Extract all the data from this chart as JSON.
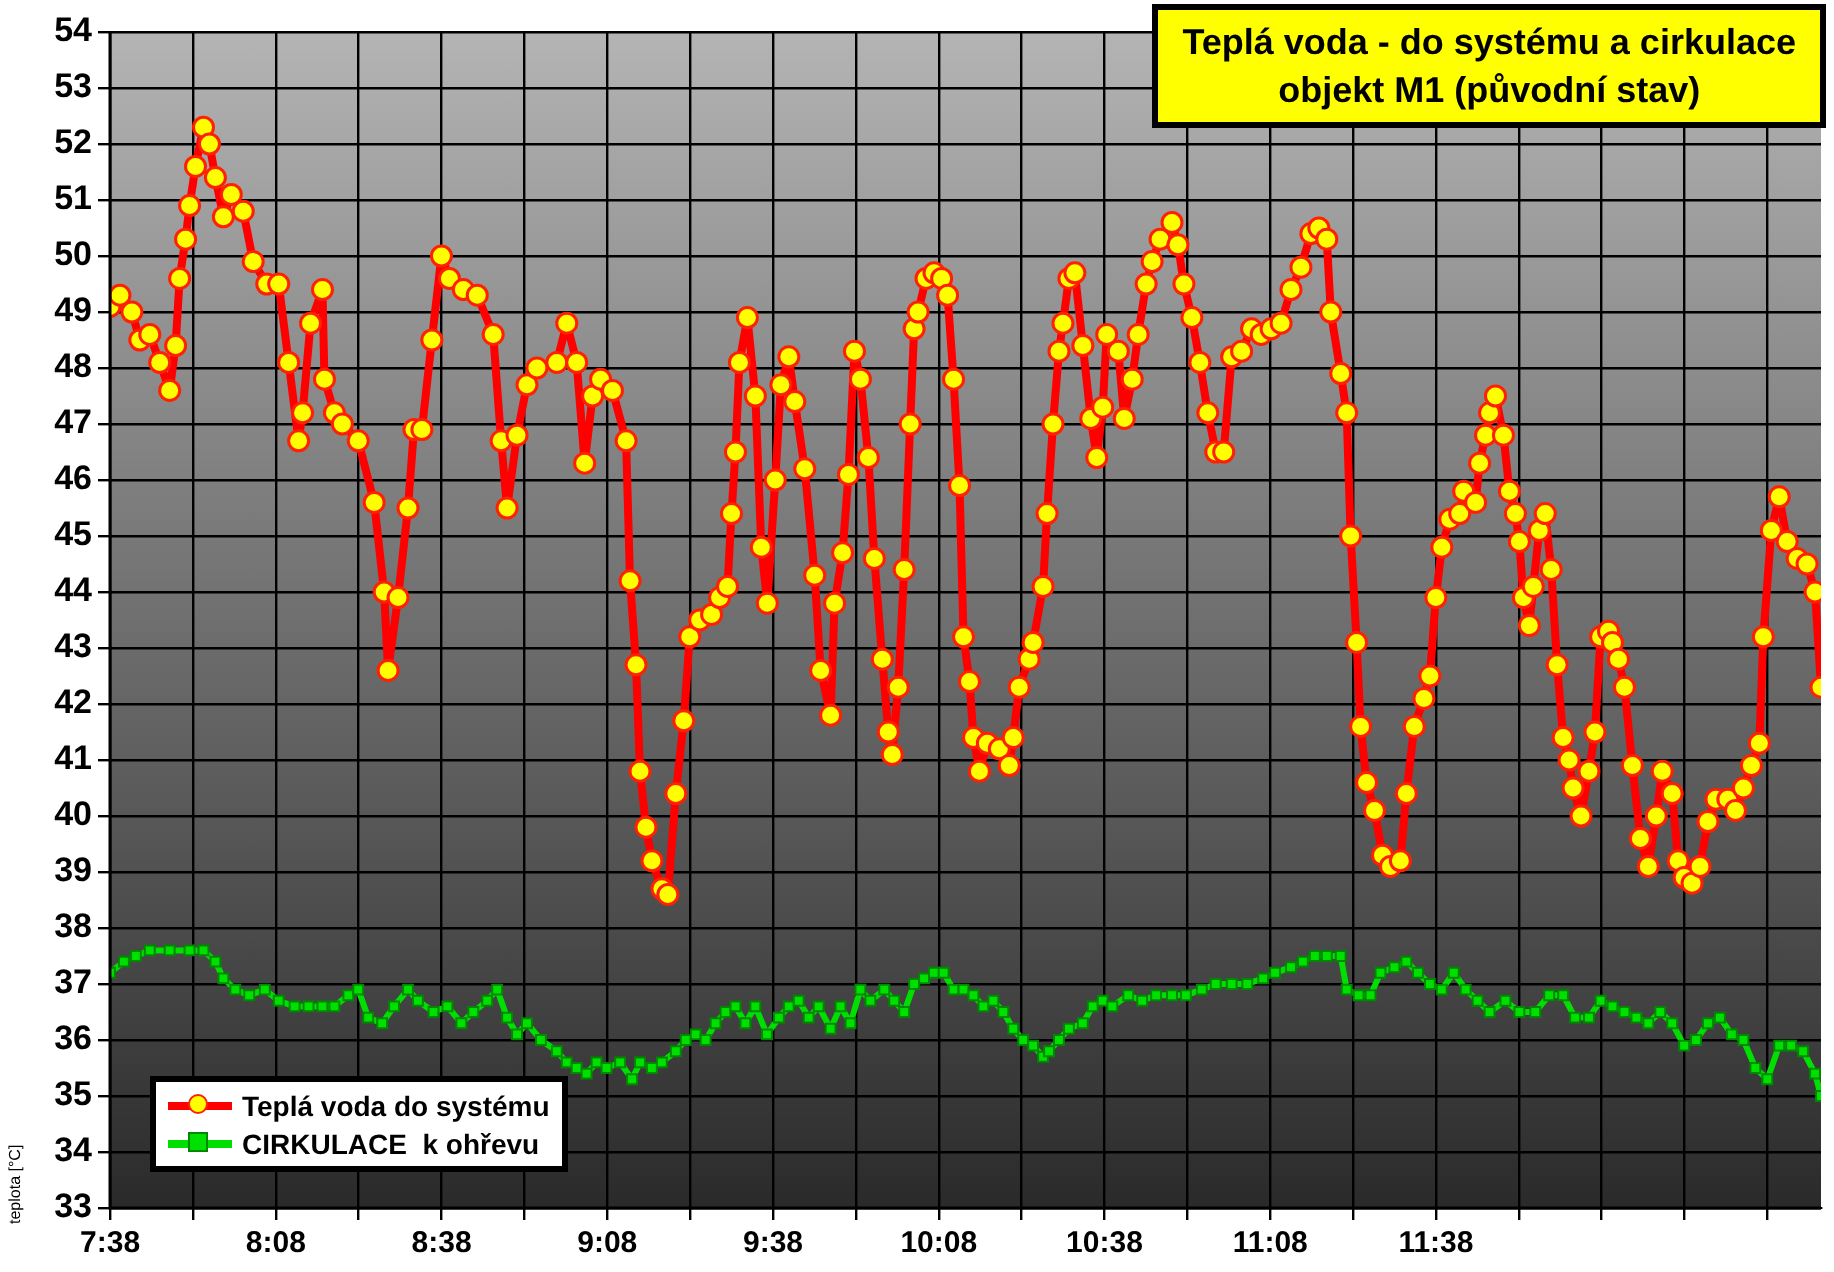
{
  "chart_data": {
    "type": "line",
    "title": "Teplá voda - do systému a cirkulace",
    "subtitle": "objekt M1 (původní stav)",
    "ylabel": "teplota [°C]",
    "xlim": [
      7.633,
      12.795
    ],
    "xticks": [
      {
        "value": 7.6333,
        "label": "7:38"
      },
      {
        "value": 7.8833,
        "label": null
      },
      {
        "value": 8.1333,
        "label": "8:08"
      },
      {
        "value": 8.3833,
        "label": null
      },
      {
        "value": 8.6333,
        "label": "8:38"
      },
      {
        "value": 8.8833,
        "label": null
      },
      {
        "value": 9.1333,
        "label": "9:08"
      },
      {
        "value": 9.3833,
        "label": null
      },
      {
        "value": 9.6333,
        "label": "9:38"
      },
      {
        "value": 9.8833,
        "label": null
      },
      {
        "value": 10.1333,
        "label": "10:08"
      },
      {
        "value": 10.3833,
        "label": null
      },
      {
        "value": 10.6333,
        "label": "10:38"
      },
      {
        "value": 10.8833,
        "label": null
      },
      {
        "value": 11.1333,
        "label": "11:08"
      },
      {
        "value": 11.3833,
        "label": null
      },
      {
        "value": 11.6333,
        "label": "11:38"
      },
      {
        "value": 11.8833,
        "label": null
      },
      {
        "value": 12.1333,
        "label": null
      },
      {
        "value": 12.3833,
        "label": null
      },
      {
        "value": 12.6333,
        "label": null
      }
    ],
    "ylim": [
      33,
      54
    ],
    "yticks": [
      33,
      34,
      35,
      36,
      37,
      38,
      39,
      40,
      41,
      42,
      43,
      44,
      45,
      46,
      47,
      48,
      49,
      50,
      51,
      52,
      53,
      54
    ],
    "grid": true,
    "legend": "bottom left",
    "series": [
      {
        "name": "Teplá voda do systému",
        "color": "#ff0000",
        "marker": "circle",
        "x": [
          7.633,
          7.663,
          7.699,
          7.723,
          7.753,
          7.783,
          7.813,
          7.831,
          7.843,
          7.861,
          7.873,
          7.891,
          7.915,
          7.933,
          7.951,
          7.975,
          7.999,
          8.035,
          8.065,
          8.106,
          8.142,
          8.172,
          8.202,
          8.214,
          8.238,
          8.274,
          8.28,
          8.31,
          8.334,
          8.382,
          8.43,
          8.46,
          8.472,
          8.502,
          8.532,
          8.55,
          8.574,
          8.604,
          8.633,
          8.657,
          8.699,
          8.741,
          8.789,
          8.813,
          8.831,
          8.861,
          8.891,
          8.921,
          8.981,
          9.011,
          9.041,
          9.065,
          9.089,
          9.113,
          9.149,
          9.19,
          9.202,
          9.22,
          9.232,
          9.25,
          9.268,
          9.298,
          9.316,
          9.34,
          9.364,
          9.382,
          9.412,
          9.448,
          9.472,
          9.496,
          9.508,
          9.52,
          9.532,
          9.556,
          9.58,
          9.598,
          9.616,
          9.64,
          9.657,
          9.681,
          9.699,
          9.729,
          9.759,
          9.777,
          9.807,
          9.819,
          9.843,
          9.861,
          9.879,
          9.897,
          9.921,
          9.939,
          9.963,
          9.981,
          9.993,
          10.011,
          10.029,
          10.047,
          10.059,
          10.071,
          10.095,
          10.119,
          10.142,
          10.16,
          10.178,
          10.196,
          10.208,
          10.226,
          10.238,
          10.256,
          10.28,
          10.316,
          10.346,
          10.358,
          10.376,
          10.406,
          10.418,
          10.448,
          10.46,
          10.478,
          10.496,
          10.508,
          10.526,
          10.544,
          10.568,
          10.592,
          10.61,
          10.628,
          10.64,
          10.675,
          10.693,
          10.717,
          10.735,
          10.759,
          10.777,
          10.801,
          10.837,
          10.855,
          10.873,
          10.897,
          10.921,
          10.945,
          10.969,
          10.993,
          11.017,
          11.047,
          11.077,
          11.106,
          11.136,
          11.166,
          11.196,
          11.226,
          11.256,
          11.28,
          11.304,
          11.316,
          11.346,
          11.364,
          11.376,
          11.394,
          11.406,
          11.424,
          11.448,
          11.472,
          11.496,
          11.526,
          11.544,
          11.568,
          11.597,
          11.615,
          11.633,
          11.651,
          11.675,
          11.705,
          11.717,
          11.753,
          11.765,
          11.783,
          11.795,
          11.813,
          11.837,
          11.855,
          11.873,
          11.885,
          11.897,
          11.915,
          11.927,
          11.945,
          11.963,
          11.981,
          11.999,
          12.017,
          12.035,
          12.047,
          12.071,
          12.095,
          12.113,
          12.13,
          12.154,
          12.166,
          12.184,
          12.202,
          12.226,
          12.25,
          12.274,
          12.298,
          12.316,
          12.346,
          12.364,
          12.382,
          12.406,
          12.43,
          12.454,
          12.478,
          12.514,
          12.537,
          12.561,
          12.585,
          12.609,
          12.621,
          12.645,
          12.669,
          12.693,
          12.723,
          12.753,
          12.777,
          12.795
        ],
        "values": [
          49.1,
          49.3,
          49.0,
          48.5,
          48.6,
          48.1,
          47.6,
          48.4,
          49.6,
          50.3,
          50.9,
          51.6,
          52.3,
          52.0,
          51.4,
          50.7,
          51.1,
          50.8,
          49.9,
          49.5,
          49.5,
          48.1,
          46.7,
          47.2,
          48.8,
          49.4,
          47.8,
          47.2,
          47.0,
          46.7,
          45.6,
          44.0,
          42.6,
          43.9,
          45.5,
          46.9,
          46.9,
          48.5,
          50.0,
          49.6,
          49.4,
          49.3,
          48.6,
          46.7,
          45.5,
          46.8,
          47.7,
          48.0,
          48.1,
          48.8,
          48.1,
          46.3,
          47.5,
          47.8,
          47.6,
          46.7,
          44.2,
          42.7,
          40.8,
          39.8,
          39.2,
          38.7,
          38.6,
          40.4,
          41.7,
          43.2,
          43.5,
          43.6,
          43.9,
          44.1,
          45.4,
          46.5,
          48.1,
          48.9,
          47.5,
          44.8,
          43.8,
          46.0,
          47.7,
          48.2,
          47.4,
          46.2,
          44.3,
          42.6,
          41.8,
          43.8,
          44.7,
          46.1,
          48.3,
          47.8,
          46.4,
          44.6,
          42.8,
          41.5,
          41.1,
          42.3,
          44.4,
          47.0,
          48.7,
          49.0,
          49.6,
          49.7,
          49.6,
          49.3,
          47.8,
          45.9,
          43.2,
          42.4,
          41.4,
          40.8,
          41.3,
          41.2,
          40.9,
          41.4,
          42.3,
          42.8,
          43.1,
          44.1,
          45.4,
          47.0,
          48.3,
          48.8,
          49.6,
          49.7,
          48.4,
          47.1,
          46.4,
          47.3,
          48.6,
          48.3,
          47.1,
          47.8,
          48.6,
          49.5,
          49.9,
          50.3,
          50.6,
          50.2,
          49.5,
          48.9,
          48.1,
          47.2,
          46.5,
          46.5,
          48.2,
          48.3,
          48.7,
          48.6,
          48.7,
          48.8,
          49.4,
          49.8,
          50.4,
          50.5,
          50.3,
          49.0,
          47.9,
          47.2,
          45.0,
          43.1,
          41.6,
          40.6,
          40.1,
          39.3,
          39.1,
          39.2,
          40.4,
          41.6,
          42.1,
          42.5,
          43.9,
          44.8,
          45.3,
          45.4,
          45.8,
          45.6,
          46.3,
          46.8,
          47.2,
          47.5,
          46.8,
          45.8,
          45.4,
          44.9,
          43.9,
          43.4,
          44.1,
          45.1,
          45.4,
          44.4,
          42.7,
          41.4,
          41.0,
          40.5,
          40.0,
          40.8,
          41.5,
          43.2,
          43.3,
          43.1,
          42.8,
          42.3,
          40.9,
          39.6,
          39.1,
          40.0,
          40.8,
          40.4,
          39.2,
          38.9,
          38.8,
          39.1,
          39.9,
          40.3,
          40.3,
          40.1,
          40.5,
          40.9,
          41.3,
          43.2,
          45.1,
          45.7,
          44.9,
          44.6,
          44.5,
          44.0,
          42.3
        ]
      },
      {
        "name": "CIRKULACE  k ohřevu",
        "color": "#00e000",
        "marker": "square",
        "x": [
          7.633,
          7.675,
          7.711,
          7.753,
          7.813,
          7.873,
          7.915,
          7.951,
          7.975,
          8.011,
          8.053,
          8.1,
          8.142,
          8.19,
          8.232,
          8.274,
          8.31,
          8.352,
          8.382,
          8.412,
          8.454,
          8.49,
          8.532,
          8.562,
          8.609,
          8.651,
          8.693,
          8.729,
          8.771,
          8.801,
          8.831,
          8.861,
          8.891,
          8.933,
          8.981,
          9.011,
          9.041,
          9.071,
          9.101,
          9.131,
          9.172,
          9.208,
          9.232,
          9.268,
          9.298,
          9.34,
          9.37,
          9.4,
          9.43,
          9.46,
          9.49,
          9.52,
          9.55,
          9.58,
          9.615,
          9.651,
          9.681,
          9.711,
          9.741,
          9.771,
          9.807,
          9.837,
          9.867,
          9.897,
          9.927,
          9.969,
          9.999,
          10.029,
          10.059,
          10.089,
          10.119,
          10.148,
          10.178,
          10.208,
          10.238,
          10.268,
          10.298,
          10.328,
          10.358,
          10.388,
          10.418,
          10.448,
          10.466,
          10.496,
          10.526,
          10.568,
          10.598,
          10.628,
          10.657,
          10.705,
          10.747,
          10.789,
          10.837,
          10.879,
          10.927,
          10.969,
          11.017,
          11.064,
          11.112,
          11.148,
          11.196,
          11.232,
          11.268,
          11.304,
          11.346,
          11.364,
          11.4,
          11.436,
          11.466,
          11.508,
          11.544,
          11.579,
          11.615,
          11.651,
          11.687,
          11.723,
          11.759,
          11.795,
          11.843,
          11.885,
          11.933,
          11.975,
          12.017,
          12.053,
          12.095,
          12.13,
          12.166,
          12.202,
          12.238,
          12.274,
          12.31,
          12.346,
          12.382,
          12.418,
          12.454,
          12.49,
          12.526,
          12.561,
          12.597,
          12.633,
          12.669,
          12.705,
          12.741,
          12.777,
          12.795
        ],
        "values": [
          37.2,
          37.4,
          37.5,
          37.6,
          37.6,
          37.6,
          37.6,
          37.4,
          37.1,
          36.9,
          36.8,
          36.9,
          36.7,
          36.6,
          36.6,
          36.6,
          36.6,
          36.8,
          36.9,
          36.4,
          36.3,
          36.6,
          36.9,
          36.7,
          36.5,
          36.6,
          36.3,
          36.5,
          36.7,
          36.9,
          36.4,
          36.1,
          36.3,
          36.0,
          35.8,
          35.6,
          35.5,
          35.4,
          35.6,
          35.5,
          35.6,
          35.3,
          35.6,
          35.5,
          35.6,
          35.8,
          36.0,
          36.1,
          36.0,
          36.3,
          36.5,
          36.6,
          36.3,
          36.6,
          36.1,
          36.4,
          36.6,
          36.7,
          36.4,
          36.6,
          36.2,
          36.6,
          36.3,
          36.9,
          36.7,
          36.9,
          36.7,
          36.5,
          37.0,
          37.1,
          37.2,
          37.2,
          36.9,
          36.9,
          36.8,
          36.6,
          36.7,
          36.5,
          36.2,
          36.0,
          35.9,
          35.7,
          35.8,
          36.0,
          36.2,
          36.3,
          36.6,
          36.7,
          36.6,
          36.8,
          36.7,
          36.8,
          36.8,
          36.8,
          36.9,
          37.0,
          37.0,
          37.0,
          37.1,
          37.2,
          37.3,
          37.4,
          37.5,
          37.5,
          37.5,
          36.9,
          36.8,
          36.8,
          37.2,
          37.3,
          37.4,
          37.2,
          37.0,
          36.9,
          37.2,
          36.9,
          36.7,
          36.5,
          36.7,
          36.5,
          36.5,
          36.8,
          36.8,
          36.4,
          36.4,
          36.7,
          36.6,
          36.5,
          36.4,
          36.3,
          36.5,
          36.3,
          35.9,
          36.0,
          36.3,
          36.4,
          36.1,
          36.0,
          35.5,
          35.3,
          35.9,
          35.9,
          35.8,
          35.4,
          35.0
        ]
      }
    ]
  }
}
